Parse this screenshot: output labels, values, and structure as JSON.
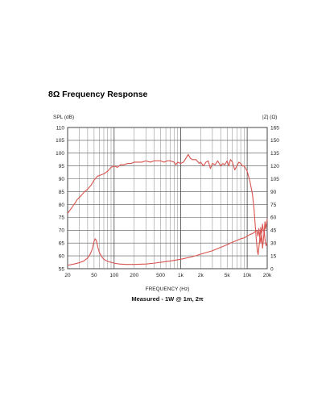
{
  "page_title": "8Ω Frequency Response",
  "chart_data": {
    "type": "line",
    "title": "8Ω Frequency Response",
    "xlabel": "FREQUENCY (Hz)",
    "ylabel_left": "SPL (dB)",
    "ylabel_right": "|Z| (Ω)",
    "x_scale": "log",
    "xlim": [
      20,
      20000
    ],
    "ylim_left": [
      55,
      110
    ],
    "ylim_right": [
      0,
      165
    ],
    "x_tick_labels": [
      {
        "value": 20,
        "label": "20"
      },
      {
        "value": 50,
        "label": "50"
      },
      {
        "value": 100,
        "label": "100"
      },
      {
        "value": 200,
        "label": "200"
      },
      {
        "value": 500,
        "label": "500"
      },
      {
        "value": 1000,
        "label": "1k"
      },
      {
        "value": 2000,
        "label": "2k"
      },
      {
        "value": 5000,
        "label": "5k"
      },
      {
        "value": 10000,
        "label": "10k"
      },
      {
        "value": 20000,
        "label": "20k"
      }
    ],
    "y_ticks_left": [
      110,
      105,
      100,
      95,
      90,
      85,
      80,
      75,
      70,
      65,
      60,
      55
    ],
    "y_ticks_right": [
      165,
      150,
      135,
      120,
      105,
      90,
      75,
      60,
      45,
      30,
      15,
      0
    ],
    "grid": true,
    "annotation": "Measured - 1W @ 1m, 2π",
    "line_color": "#d9534f",
    "series": [
      {
        "axis": "left",
        "points": [
          [
            20,
            76.5
          ],
          [
            22,
            78
          ],
          [
            25,
            80
          ],
          [
            28,
            82
          ],
          [
            32,
            83.5
          ],
          [
            36,
            85
          ],
          [
            40,
            86
          ],
          [
            45,
            87.5
          ],
          [
            50,
            89.5
          ],
          [
            56,
            91
          ],
          [
            63,
            91.5
          ],
          [
            71,
            92
          ],
          [
            80,
            93
          ],
          [
            90,
            94.5
          ],
          [
            100,
            95
          ],
          [
            112,
            94.5
          ],
          [
            125,
            95.5
          ],
          [
            140,
            95.5
          ],
          [
            160,
            96
          ],
          [
            180,
            96
          ],
          [
            200,
            96.5
          ],
          [
            230,
            96.5
          ],
          [
            260,
            96.5
          ],
          [
            300,
            97
          ],
          [
            350,
            96.5
          ],
          [
            400,
            97
          ],
          [
            450,
            97
          ],
          [
            500,
            97
          ],
          [
            560,
            96.5
          ],
          [
            630,
            97
          ],
          [
            700,
            97
          ],
          [
            800,
            96.5
          ],
          [
            850,
            95.5
          ],
          [
            900,
            96.5
          ],
          [
            1000,
            96
          ],
          [
            1100,
            96.5
          ],
          [
            1200,
            98
          ],
          [
            1300,
            99.5
          ],
          [
            1400,
            98
          ],
          [
            1500,
            97.5
          ],
          [
            1700,
            97.5
          ],
          [
            1900,
            96
          ],
          [
            2000,
            96.5
          ],
          [
            2200,
            95
          ],
          [
            2400,
            96.5
          ],
          [
            2600,
            97
          ],
          [
            2800,
            94
          ],
          [
            3000,
            96
          ],
          [
            3300,
            95.5
          ],
          [
            3600,
            97
          ],
          [
            4000,
            95
          ],
          [
            4300,
            96
          ],
          [
            4600,
            95.5
          ],
          [
            5000,
            97
          ],
          [
            5300,
            95
          ],
          [
            5600,
            97.5
          ],
          [
            6000,
            96.5
          ],
          [
            6500,
            93.5
          ],
          [
            7000,
            95
          ],
          [
            7500,
            96.5
          ],
          [
            8000,
            96
          ],
          [
            8500,
            95
          ],
          [
            9000,
            95
          ],
          [
            10000,
            93
          ],
          [
            11000,
            89
          ],
          [
            12000,
            84
          ],
          [
            12700,
            78
          ],
          [
            13200,
            72
          ],
          [
            13700,
            66.5
          ],
          [
            14200,
            62
          ],
          [
            14600,
            60.5
          ],
          [
            15100,
            64
          ],
          [
            15600,
            67.5
          ],
          [
            16000,
            65
          ],
          [
            16500,
            68.5
          ],
          [
            17000,
            63
          ],
          [
            17500,
            66
          ],
          [
            18000,
            70
          ],
          [
            18600,
            66
          ],
          [
            19200,
            64
          ],
          [
            20000,
            65
          ]
        ]
      },
      {
        "axis": "right",
        "points": [
          [
            20,
            4
          ],
          [
            25,
            5.5
          ],
          [
            30,
            7
          ],
          [
            35,
            9
          ],
          [
            40,
            12.5
          ],
          [
            43,
            16
          ],
          [
            46,
            21
          ],
          [
            48,
            26
          ],
          [
            50,
            32
          ],
          [
            52,
            35
          ],
          [
            54,
            33
          ],
          [
            57,
            25
          ],
          [
            60,
            19
          ],
          [
            65,
            14
          ],
          [
            70,
            11
          ],
          [
            80,
            8.5
          ],
          [
            100,
            6.5
          ],
          [
            120,
            5.5
          ],
          [
            150,
            5
          ],
          [
            200,
            5
          ],
          [
            300,
            5.5
          ],
          [
            400,
            6.5
          ],
          [
            500,
            7.5
          ],
          [
            700,
            9
          ],
          [
            1000,
            11
          ],
          [
            1500,
            14
          ],
          [
            2000,
            17
          ],
          [
            3000,
            21
          ],
          [
            4000,
            25
          ],
          [
            5000,
            28
          ],
          [
            6000,
            31
          ],
          [
            7000,
            33
          ],
          [
            8000,
            35
          ],
          [
            9000,
            36
          ],
          [
            10000,
            38
          ],
          [
            11000,
            40
          ],
          [
            12000,
            41
          ],
          [
            13000,
            43
          ],
          [
            14000,
            45
          ],
          [
            14500,
            38
          ],
          [
            15000,
            47
          ],
          [
            15500,
            35
          ],
          [
            16000,
            48
          ],
          [
            16500,
            40
          ],
          [
            17000,
            52
          ],
          [
            17500,
            45
          ],
          [
            18000,
            42
          ],
          [
            18500,
            55
          ],
          [
            19000,
            46
          ],
          [
            20000,
            58
          ]
        ]
      }
    ]
  }
}
